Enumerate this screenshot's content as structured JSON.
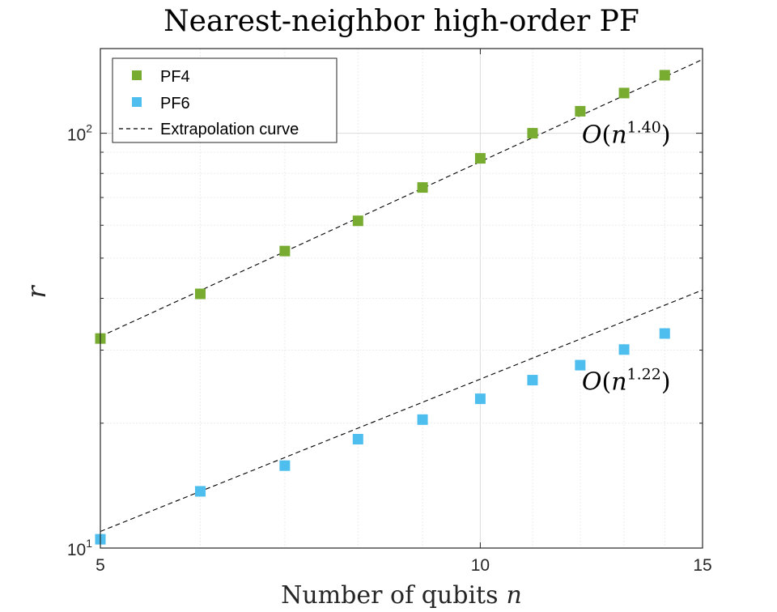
{
  "chart_data": {
    "type": "scatter",
    "title": "Nearest-neighbor high-order PF",
    "xlabel": "Number of qubits",
    "xlabel_var": "n",
    "ylabel": "r",
    "xscale": "log",
    "yscale": "log",
    "xlim": [
      5,
      15
    ],
    "ylim": [
      10,
      160
    ],
    "grid": true,
    "legend_position": "top-left",
    "x_ticks": [
      {
        "value": 5,
        "label": "5"
      },
      {
        "value": 10,
        "label": "10"
      },
      {
        "value": 15,
        "label": "15"
      }
    ],
    "y_ticks": [
      {
        "value": 10,
        "base": "10",
        "exp": "1"
      },
      {
        "value": 100,
        "base": "10",
        "exp": "2"
      }
    ],
    "series": [
      {
        "name": "PF4",
        "marker": "square",
        "color": "#77ac30",
        "x": [
          5,
          6,
          7,
          8,
          9,
          10,
          11,
          12,
          13,
          14
        ],
        "y": [
          32,
          41,
          52,
          61.5,
          74,
          87,
          100,
          113,
          125,
          138
        ]
      },
      {
        "name": "PF6",
        "marker": "square",
        "color": "#4dbeee",
        "x": [
          5,
          6,
          7,
          8,
          9,
          10,
          11,
          12,
          13,
          14
        ],
        "y": [
          10.5,
          13.7,
          15.8,
          18.3,
          20.4,
          22.9,
          25.4,
          27.6,
          30.1,
          32.9
        ]
      }
    ],
    "fits": [
      {
        "series": "PF4",
        "coef": 3.399,
        "exponent": 1.4,
        "x_range": [
          5,
          15
        ]
      },
      {
        "series": "PF6",
        "coef": 1.539,
        "exponent": 1.22,
        "x_range": [
          5,
          15
        ]
      }
    ],
    "extrapolation_label": "Extrapolation curve",
    "annotations": [
      {
        "prefix": "O",
        "var": "n",
        "exp": "1.40",
        "x": 12,
        "y": 100
      },
      {
        "prefix": "O",
        "var": "n",
        "exp": "1.22",
        "x": 12,
        "y": 25.4
      }
    ]
  }
}
